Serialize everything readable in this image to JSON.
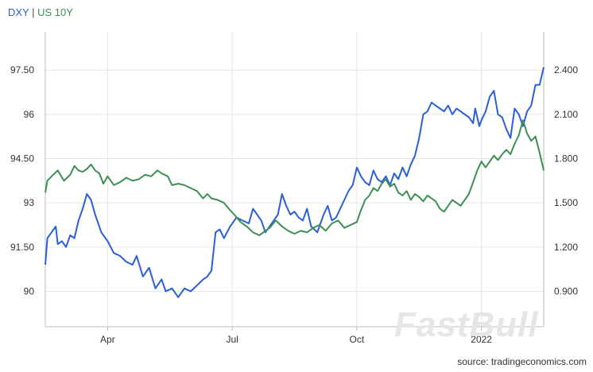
{
  "legend": {
    "series1": "DXY",
    "separator": " | ",
    "series2": "US 10Y"
  },
  "source": "source: tradingeconomics.com",
  "watermark": "FastBull",
  "colors": {
    "dxy": "#2b5fd9",
    "us10y": "#3f8f55",
    "grid": "#e6e6e6",
    "axis": "#bdbdbd"
  },
  "chart_data": {
    "type": "line",
    "title": "",
    "x_tick_labels": [
      {
        "label": "Apr",
        "t": 1.5
      },
      {
        "label": "Jul",
        "t": 4.5
      },
      {
        "label": "Oct",
        "t": 7.5
      },
      {
        "label": "2022",
        "t": 10.5
      }
    ],
    "x_range": [
      0,
      12
    ],
    "left_axis": {
      "ylim": [
        88.8,
        98.8
      ],
      "ticks": [
        90,
        91.5,
        93,
        94.5,
        96,
        97.5
      ],
      "tick_labels": [
        "90",
        "91.50",
        "93",
        "94.50",
        "96",
        "97.50"
      ]
    },
    "right_axis": {
      "ylim": [
        0.66,
        2.66
      ],
      "ticks": [
        0.9,
        1.2,
        1.5,
        1.8,
        2.1,
        2.4
      ],
      "tick_labels": [
        "0.900",
        "1.200",
        "1.500",
        "1.800",
        "2.100",
        "2.400"
      ]
    },
    "grid": true,
    "series": [
      {
        "name": "DXY",
        "axis": "left",
        "points": [
          [
            0.0,
            90.9
          ],
          [
            0.05,
            91.8
          ],
          [
            0.15,
            92.0
          ],
          [
            0.25,
            92.2
          ],
          [
            0.3,
            91.6
          ],
          [
            0.4,
            91.7
          ],
          [
            0.5,
            91.5
          ],
          [
            0.6,
            91.9
          ],
          [
            0.7,
            91.8
          ],
          [
            0.8,
            92.4
          ],
          [
            0.9,
            92.8
          ],
          [
            1.0,
            93.3
          ],
          [
            1.1,
            93.1
          ],
          [
            1.2,
            92.6
          ],
          [
            1.35,
            92.0
          ],
          [
            1.5,
            91.7
          ],
          [
            1.65,
            91.3
          ],
          [
            1.8,
            91.2
          ],
          [
            1.95,
            91.0
          ],
          [
            2.1,
            90.9
          ],
          [
            2.2,
            91.2
          ],
          [
            2.35,
            90.5
          ],
          [
            2.5,
            90.8
          ],
          [
            2.65,
            90.1
          ],
          [
            2.8,
            90.4
          ],
          [
            2.9,
            90.0
          ],
          [
            3.05,
            90.1
          ],
          [
            3.2,
            89.8
          ],
          [
            3.35,
            90.1
          ],
          [
            3.5,
            90.0
          ],
          [
            3.65,
            90.2
          ],
          [
            3.8,
            90.4
          ],
          [
            3.9,
            90.5
          ],
          [
            4.0,
            90.7
          ],
          [
            4.1,
            92.0
          ],
          [
            4.2,
            92.1
          ],
          [
            4.3,
            91.8
          ],
          [
            4.45,
            92.2
          ],
          [
            4.6,
            92.5
          ],
          [
            4.75,
            92.4
          ],
          [
            4.9,
            92.3
          ],
          [
            5.0,
            92.8
          ],
          [
            5.1,
            92.6
          ],
          [
            5.2,
            92.4
          ],
          [
            5.3,
            92.0
          ],
          [
            5.45,
            92.3
          ],
          [
            5.6,
            92.6
          ],
          [
            5.7,
            93.3
          ],
          [
            5.8,
            92.9
          ],
          [
            5.9,
            92.6
          ],
          [
            6.0,
            92.7
          ],
          [
            6.1,
            92.5
          ],
          [
            6.2,
            92.4
          ],
          [
            6.3,
            92.8
          ],
          [
            6.4,
            92.2
          ],
          [
            6.55,
            92.0
          ],
          [
            6.7,
            92.6
          ],
          [
            6.8,
            92.9
          ],
          [
            6.9,
            92.4
          ],
          [
            7.0,
            92.5
          ],
          [
            7.1,
            92.8
          ],
          [
            7.2,
            93.1
          ],
          [
            7.3,
            93.4
          ],
          [
            7.4,
            93.6
          ],
          [
            7.5,
            94.2
          ],
          [
            7.6,
            93.9
          ],
          [
            7.7,
            93.7
          ],
          [
            7.8,
            93.6
          ],
          [
            7.9,
            94.1
          ],
          [
            8.0,
            93.8
          ],
          [
            8.1,
            93.7
          ],
          [
            8.2,
            93.9
          ],
          [
            8.3,
            93.6
          ],
          [
            8.4,
            94.0
          ],
          [
            8.5,
            93.8
          ],
          [
            8.6,
            94.2
          ],
          [
            8.7,
            93.9
          ],
          [
            8.8,
            94.3
          ],
          [
            8.9,
            94.6
          ],
          [
            9.0,
            95.2
          ],
          [
            9.1,
            96.0
          ],
          [
            9.2,
            96.1
          ],
          [
            9.3,
            96.4
          ],
          [
            9.4,
            96.3
          ],
          [
            9.5,
            96.2
          ],
          [
            9.6,
            96.1
          ],
          [
            9.7,
            96.3
          ],
          [
            9.8,
            96.0
          ],
          [
            9.9,
            96.2
          ],
          [
            10.0,
            96.1
          ],
          [
            10.1,
            96.0
          ],
          [
            10.2,
            95.9
          ],
          [
            10.3,
            95.7
          ],
          [
            10.35,
            96.2
          ],
          [
            10.45,
            95.6
          ],
          [
            10.5,
            95.8
          ],
          [
            10.6,
            96.1
          ],
          [
            10.7,
            96.6
          ],
          [
            10.8,
            96.8
          ],
          [
            10.9,
            96.0
          ],
          [
            11.0,
            95.9
          ],
          [
            11.1,
            95.5
          ],
          [
            11.2,
            95.2
          ],
          [
            11.3,
            96.2
          ],
          [
            11.4,
            96.0
          ],
          [
            11.5,
            95.6
          ],
          [
            11.6,
            96.1
          ],
          [
            11.7,
            96.3
          ],
          [
            11.8,
            97.0
          ],
          [
            11.9,
            97.0
          ],
          [
            12.0,
            97.6
          ]
        ]
      },
      {
        "name": "US 10Y",
        "axis": "right",
        "points": [
          [
            0.0,
            1.57
          ],
          [
            0.05,
            1.65
          ],
          [
            0.15,
            1.68
          ],
          [
            0.3,
            1.72
          ],
          [
            0.45,
            1.65
          ],
          [
            0.6,
            1.69
          ],
          [
            0.7,
            1.75
          ],
          [
            0.8,
            1.72
          ],
          [
            0.9,
            1.71
          ],
          [
            1.0,
            1.73
          ],
          [
            1.1,
            1.76
          ],
          [
            1.2,
            1.72
          ],
          [
            1.3,
            1.7
          ],
          [
            1.4,
            1.63
          ],
          [
            1.5,
            1.68
          ],
          [
            1.65,
            1.62
          ],
          [
            1.8,
            1.64
          ],
          [
            1.95,
            1.67
          ],
          [
            2.1,
            1.65
          ],
          [
            2.25,
            1.66
          ],
          [
            2.4,
            1.69
          ],
          [
            2.55,
            1.68
          ],
          [
            2.7,
            1.72
          ],
          [
            2.8,
            1.7
          ],
          [
            2.95,
            1.68
          ],
          [
            3.05,
            1.62
          ],
          [
            3.2,
            1.63
          ],
          [
            3.35,
            1.62
          ],
          [
            3.5,
            1.6
          ],
          [
            3.65,
            1.58
          ],
          [
            3.8,
            1.53
          ],
          [
            3.9,
            1.56
          ],
          [
            4.0,
            1.53
          ],
          [
            4.15,
            1.52
          ],
          [
            4.3,
            1.5
          ],
          [
            4.45,
            1.45
          ],
          [
            4.55,
            1.42
          ],
          [
            4.7,
            1.37
          ],
          [
            4.85,
            1.34
          ],
          [
            5.0,
            1.3
          ],
          [
            5.15,
            1.28
          ],
          [
            5.25,
            1.3
          ],
          [
            5.4,
            1.33
          ],
          [
            5.55,
            1.38
          ],
          [
            5.7,
            1.34
          ],
          [
            5.85,
            1.31
          ],
          [
            6.0,
            1.29
          ],
          [
            6.15,
            1.31
          ],
          [
            6.3,
            1.3
          ],
          [
            6.45,
            1.33
          ],
          [
            6.6,
            1.35
          ],
          [
            6.75,
            1.31
          ],
          [
            6.9,
            1.36
          ],
          [
            7.05,
            1.38
          ],
          [
            7.2,
            1.33
          ],
          [
            7.35,
            1.35
          ],
          [
            7.5,
            1.37
          ],
          [
            7.6,
            1.45
          ],
          [
            7.7,
            1.52
          ],
          [
            7.8,
            1.55
          ],
          [
            7.9,
            1.6
          ],
          [
            8.0,
            1.58
          ],
          [
            8.1,
            1.63
          ],
          [
            8.2,
            1.66
          ],
          [
            8.3,
            1.61
          ],
          [
            8.4,
            1.63
          ],
          [
            8.5,
            1.57
          ],
          [
            8.6,
            1.55
          ],
          [
            8.7,
            1.58
          ],
          [
            8.8,
            1.52
          ],
          [
            8.9,
            1.56
          ],
          [
            9.0,
            1.54
          ],
          [
            9.1,
            1.51
          ],
          [
            9.2,
            1.55
          ],
          [
            9.3,
            1.53
          ],
          [
            9.4,
            1.51
          ],
          [
            9.5,
            1.46
          ],
          [
            9.6,
            1.44
          ],
          [
            9.7,
            1.48
          ],
          [
            9.8,
            1.52
          ],
          [
            9.9,
            1.5
          ],
          [
            10.0,
            1.48
          ],
          [
            10.1,
            1.52
          ],
          [
            10.2,
            1.56
          ],
          [
            10.3,
            1.64
          ],
          [
            10.4,
            1.72
          ],
          [
            10.5,
            1.78
          ],
          [
            10.6,
            1.74
          ],
          [
            10.7,
            1.78
          ],
          [
            10.8,
            1.82
          ],
          [
            10.9,
            1.79
          ],
          [
            11.0,
            1.83
          ],
          [
            11.1,
            1.86
          ],
          [
            11.2,
            1.83
          ],
          [
            11.3,
            1.9
          ],
          [
            11.4,
            1.96
          ],
          [
            11.5,
            2.06
          ],
          [
            11.6,
            1.97
          ],
          [
            11.7,
            1.92
          ],
          [
            11.8,
            1.95
          ],
          [
            11.9,
            1.84
          ],
          [
            12.0,
            1.72
          ]
        ]
      }
    ]
  }
}
